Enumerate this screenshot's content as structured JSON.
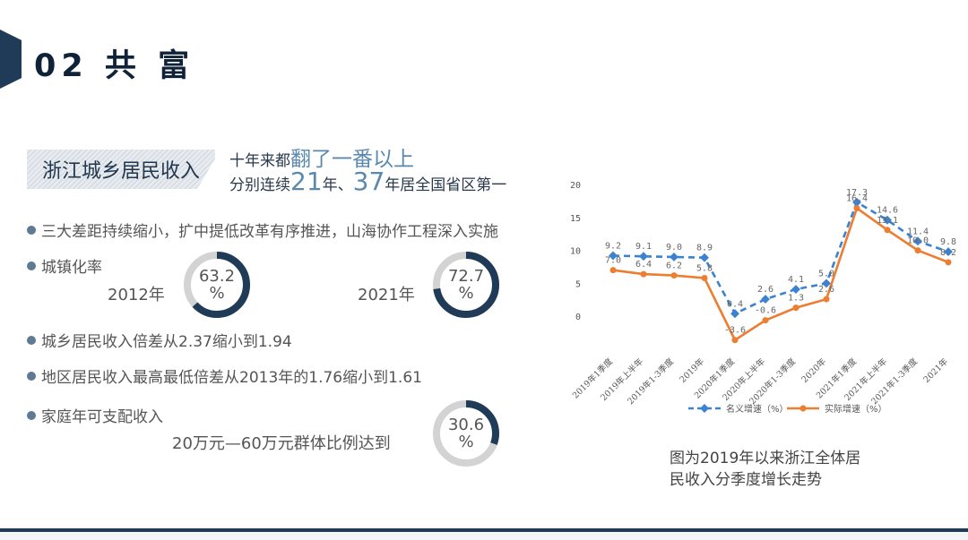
{
  "header": {
    "title": "02 共 富"
  },
  "section_tag": "浙江城乡居民收入",
  "headline": {
    "line1_prefix": "十年来都",
    "line1_highlight": "翻了一番以上",
    "line2_prefix": "分别连续",
    "line2_num1": "21",
    "line2_mid": "年、",
    "line2_num2": "37",
    "line2_suffix": "年居全国省区第一"
  },
  "bullets": {
    "b1": "三大差距持续缩小，扩中提低改革有序推进，山海协作工程深入实施",
    "b2": "城镇化率",
    "b3": "城乡居民收入倍差从2.37缩小到1.94",
    "b4": "地区居民收入最高最低倍差从2013年的1.76缩小到1.61",
    "b5": "家庭年可支配收入",
    "b5_sub": "20万元—60万元群体比例达到"
  },
  "stats": {
    "urban_2012": {
      "year": "2012年",
      "value": "63.2",
      "unit": "%",
      "fraction": 0.632
    },
    "urban_2021": {
      "year": "2021年",
      "value": "72.7",
      "unit": "%",
      "fraction": 0.727
    },
    "income_group": {
      "value": "30.6",
      "unit": "%",
      "fraction": 0.306
    }
  },
  "colors": {
    "ring_fill": "#1f3b57",
    "ring_track": "#d3d3d3",
    "nominal": "#3b82d0",
    "real": "#ed7d31"
  },
  "chart_data": {
    "type": "line",
    "categories": [
      "2019年1季度",
      "2019年上半年",
      "2019年1-3季度",
      "2019年",
      "2020年1季度",
      "2020年上半年",
      "2020年1-3季度",
      "2020年",
      "2021年1季度",
      "2021年上半年",
      "2021年1-3季度",
      "2021年"
    ],
    "series": [
      {
        "name": "名义增速（%）",
        "values": [
          9.2,
          9.1,
          9.0,
          8.9,
          0.4,
          2.6,
          4.1,
          5.0,
          17.3,
          14.6,
          11.4,
          9.8
        ],
        "labels": [
          "9.2",
          "9.1",
          "9.0",
          "8.9",
          "0.4",
          "2.6",
          "4.1",
          "5.0",
          "17.3",
          "14.6",
          "11.4",
          "9.8"
        ],
        "color": "#3b82d0",
        "style": "dashed"
      },
      {
        "name": "实际增速（%）",
        "values": [
          7.0,
          6.4,
          6.2,
          5.8,
          -3.6,
          -0.6,
          1.3,
          2.6,
          16.4,
          13.1,
          10.0,
          8.2
        ],
        "labels": [
          "7.0",
          "6.4",
          "6.2",
          "5.8",
          "-3.6",
          "-0.6",
          "1.3",
          "2.6",
          "16.4",
          "13.1",
          "10.0",
          "8.2"
        ],
        "color": "#ed7d31",
        "style": "solid"
      }
    ],
    "ylim": [
      -5,
      20
    ],
    "yticks": [
      "0",
      "5",
      "10",
      "15",
      "20"
    ],
    "legend_position": "bottom",
    "grid": false,
    "caption": [
      "图为2019年以来浙江全体居",
      "民收入分季度增长走势"
    ]
  }
}
